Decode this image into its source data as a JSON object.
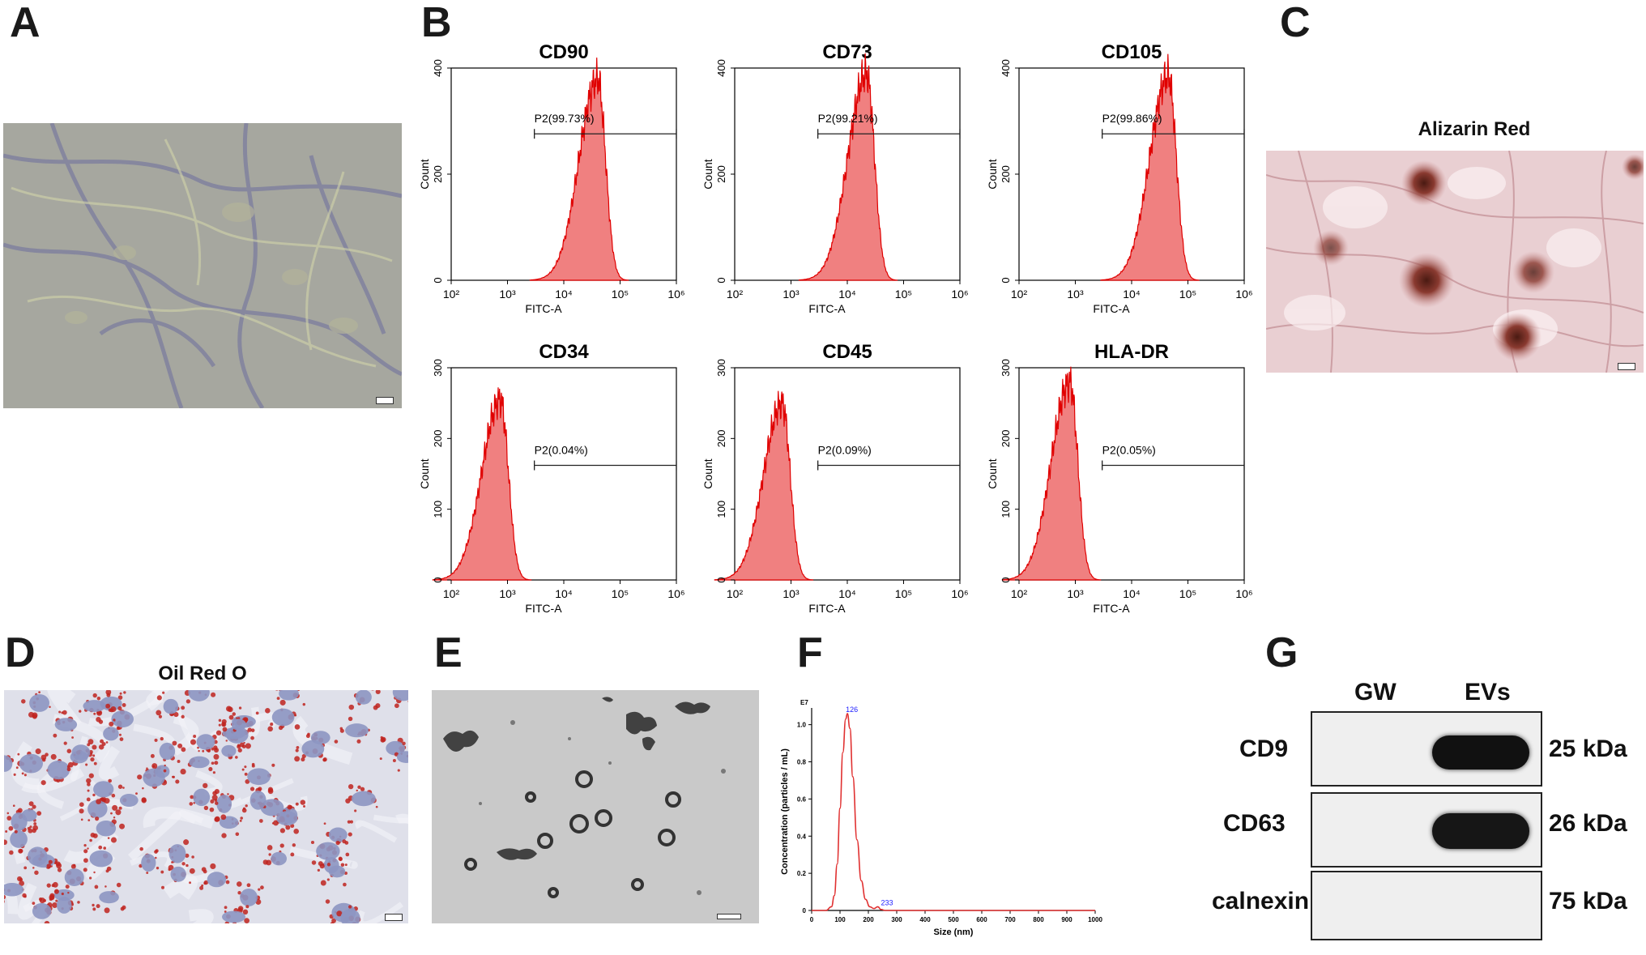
{
  "panel_labels": {
    "A": "A",
    "B": "B",
    "C": "C",
    "D": "D",
    "E": "E",
    "F": "F",
    "G": "G"
  },
  "photos": {
    "C_title": "Alizarin Red",
    "D_title": "Oil Red O"
  },
  "flow_axes": {
    "xlabel": "FITC-A",
    "ylabel": "Count",
    "x_ticks": [
      "10²",
      "10³",
      "10⁴",
      "10⁵",
      "10⁶"
    ]
  },
  "colors": {
    "histogram_fill": "#f08080",
    "histogram_line": "#e00000",
    "nta_line": "#e03030",
    "nta_peak_label": "#1a1aff"
  },
  "chart_data": [
    {
      "type": "area",
      "title": "CD90",
      "xlabel": "FITC-A",
      "ylabel": "Count",
      "xscale": "log",
      "xlim": [
        100,
        1000000
      ],
      "ylim": [
        0,
        400
      ],
      "yticks": [
        0,
        200,
        400
      ],
      "gate": {
        "label": "P2(99.73%)",
        "range": [
          3000,
          1000000
        ]
      },
      "peak": {
        "x": 40000,
        "y": 380
      }
    },
    {
      "type": "area",
      "title": "CD73",
      "xlabel": "FITC-A",
      "ylabel": "Count",
      "xscale": "log",
      "xlim": [
        100,
        1000000
      ],
      "ylim": [
        0,
        400
      ],
      "yticks": [
        0,
        200,
        400
      ],
      "gate": {
        "label": "P2(99.21%)",
        "range": [
          3000,
          1000000
        ]
      },
      "peak": {
        "x": 22000,
        "y": 390
      }
    },
    {
      "type": "area",
      "title": "CD105",
      "xlabel": "FITC-A",
      "ylabel": "Count",
      "xscale": "log",
      "xlim": [
        100,
        1000000
      ],
      "ylim": [
        0,
        400
      ],
      "yticks": [
        0,
        200,
        400
      ],
      "gate": {
        "label": "P2(99.86%)",
        "range": [
          3000,
          1000000
        ]
      },
      "peak": {
        "x": 45000,
        "y": 385
      }
    },
    {
      "type": "area",
      "title": "CD34",
      "xlabel": "FITC-A",
      "ylabel": "Count",
      "xscale": "log",
      "xlim": [
        100,
        1000000
      ],
      "ylim": [
        0,
        300
      ],
      "yticks": [
        0,
        100,
        200,
        300
      ],
      "gate": {
        "label": "P2(0.04%)",
        "range": [
          3000,
          1000000
        ]
      },
      "peak": {
        "x": 750,
        "y": 255
      }
    },
    {
      "type": "area",
      "title": "CD45",
      "xlabel": "FITC-A",
      "ylabel": "Count",
      "xscale": "log",
      "xlim": [
        100,
        1000000
      ],
      "ylim": [
        0,
        300
      ],
      "yticks": [
        0,
        100,
        200,
        300
      ],
      "gate": {
        "label": "P2(0.09%)",
        "range": [
          3000,
          1000000
        ]
      },
      "peak": {
        "x": 700,
        "y": 250
      }
    },
    {
      "type": "area",
      "title": "HLA-DR",
      "xlabel": "FITC-A",
      "ylabel": "Count",
      "xscale": "log",
      "xlim": [
        100,
        1000000
      ],
      "ylim": [
        0,
        300
      ],
      "yticks": [
        0,
        100,
        200,
        300
      ],
      "gate": {
        "label": "P2(0.05%)",
        "range": [
          3000,
          1000000
        ]
      },
      "peak": {
        "x": 800,
        "y": 280
      }
    },
    {
      "type": "line",
      "xlabel": "Size (nm)",
      "ylabel": "Concentration (particles / mL)",
      "y_multiplier_label": "E7",
      "xlim": [
        0,
        1000
      ],
      "ylim": [
        0,
        1.0
      ],
      "xticks": [
        0,
        100,
        200,
        300,
        400,
        500,
        600,
        700,
        800,
        900,
        1000
      ],
      "yticks": [
        0,
        0.2,
        0.4,
        0.6,
        0.8,
        1.0
      ],
      "peak_labels": [
        {
          "x": 126,
          "y": 1.06,
          "text": "126"
        },
        {
          "x": 233,
          "y": 0.02,
          "text": "233"
        }
      ],
      "x": [
        0,
        50,
        70,
        80,
        90,
        100,
        110,
        120,
        126,
        135,
        145,
        160,
        175,
        190,
        205,
        220,
        233,
        245,
        260,
        300,
        1000
      ],
      "y": [
        0,
        0,
        0.02,
        0.08,
        0.25,
        0.55,
        0.85,
        1.03,
        1.06,
        0.98,
        0.72,
        0.38,
        0.16,
        0.06,
        0.02,
        0.01,
        0.02,
        0.005,
        0,
        0,
        0
      ]
    }
  ],
  "western": {
    "columns": [
      "GW",
      "EVs"
    ],
    "rows": [
      {
        "name": "CD9",
        "kda": "25 kDa"
      },
      {
        "name": "CD63",
        "kda": "26 kDa"
      },
      {
        "name": "calnexin",
        "kda": "75 kDa"
      }
    ]
  }
}
